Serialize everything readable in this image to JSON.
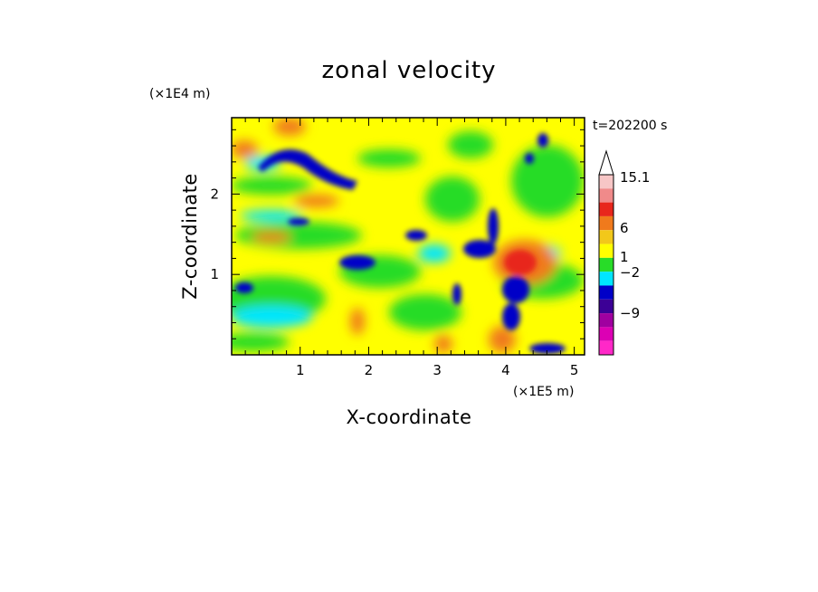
{
  "chart_data": {
    "type": "heatmap",
    "title": "zonal velocity",
    "xlabel": "X-coordinate",
    "ylabel": "Z-coordinate",
    "x_scale_label": "(×1E5 m)",
    "y_scale_label": "(×1E4 m)",
    "time_label": "t=202200 s",
    "xlim": [
      0,
      5.15
    ],
    "ylim": [
      0,
      2.95
    ],
    "xticks": [
      1,
      2,
      3,
      4,
      5
    ],
    "yticks": [
      1,
      2
    ],
    "colorbar": {
      "labels": [
        "15.1",
        "6",
        "1",
        "−2",
        "−9"
      ],
      "colors": [
        "#f7c6c6",
        "#f08a8a",
        "#e8261c",
        "#f07a1c",
        "#f2c81a",
        "#ffff00",
        "#28dc28",
        "#00e6ff",
        "#0000c8",
        "#3c0096",
        "#a000a0",
        "#dc00b4",
        "#ff28c8"
      ],
      "extend": "max"
    }
  }
}
